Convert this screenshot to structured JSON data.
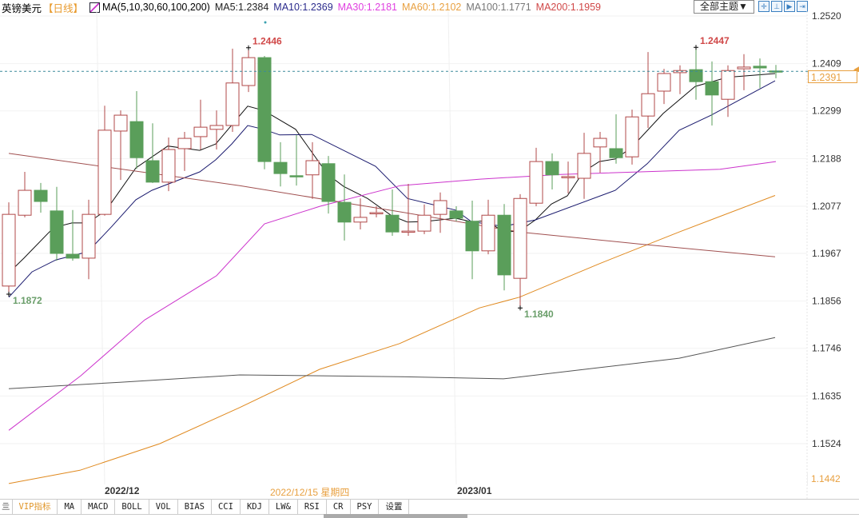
{
  "header": {
    "symbol": "英镑美元",
    "period": "【日线】",
    "ma_title": "MA(5,10,30,60,100,200)",
    "ma_values": [
      {
        "label": "MA5:1.2384",
        "color": "#222222"
      },
      {
        "label": "MA10:1.2369",
        "color": "#2b2b8c"
      },
      {
        "label": "MA30:1.2181",
        "color": "#e040e0"
      },
      {
        "label": "MA60:1.2102",
        "color": "#e8a040"
      },
      {
        "label": "MA100:1.1771",
        "color": "#777777"
      },
      {
        "label": "MA200:1.1959",
        "color": "#d04848"
      }
    ],
    "theme_button": "全部主题▼",
    "tool_icons": [
      "crosshair-icon",
      "range-icon",
      "play-icon",
      "exit-icon"
    ]
  },
  "chart_data": {
    "type": "candlestick",
    "title": "英镑美元 日线",
    "ylim": [
      1.1442,
      1.252
    ],
    "yticks": [
      "1.2520",
      "1.2409",
      "1.2299",
      "1.2188",
      "1.2077",
      "1.1967",
      "1.1856",
      "1.1746",
      "1.1635",
      "1.1524"
    ],
    "y_bottom_label": "1.1442",
    "current_price": "1.2391",
    "x_labels": [
      {
        "label": "2022/12",
        "index": 6
      },
      {
        "label": "2023/01",
        "index": 28
      }
    ],
    "crosshair_date": "2022/12/15 星期四",
    "annotations": [
      {
        "label": "1.1872",
        "index": 0,
        "kind": "low"
      },
      {
        "label": "1.2446",
        "index": 15,
        "kind": "high"
      },
      {
        "label": "1.1840",
        "index": 32,
        "kind": "low"
      },
      {
        "label": "1.2447",
        "index": 43,
        "kind": "high"
      }
    ],
    "ohlc": [
      [
        1.1891,
        1.2086,
        1.1872,
        1.2058
      ],
      [
        1.2056,
        1.2157,
        1.2051,
        1.2114
      ],
      [
        1.2114,
        1.2131,
        1.2062,
        1.2088
      ],
      [
        1.2066,
        1.2122,
        1.195,
        1.1967
      ],
      [
        1.1965,
        1.2068,
        1.195,
        1.1956
      ],
      [
        1.1956,
        1.2092,
        1.1907,
        1.2058
      ],
      [
        1.2058,
        1.2311,
        1.2055,
        1.2254
      ],
      [
        1.2252,
        1.23,
        1.2138,
        1.2289
      ],
      [
        1.2274,
        1.2345,
        1.2164,
        1.219
      ],
      [
        1.2183,
        1.227,
        1.2131,
        1.2133
      ],
      [
        1.2133,
        1.2237,
        1.2112,
        1.2209
      ],
      [
        1.2211,
        1.225,
        1.2159,
        1.2235
      ],
      [
        1.2239,
        1.2325,
        1.2209,
        1.2261
      ],
      [
        1.2256,
        1.23,
        1.2209,
        1.2265
      ],
      [
        1.2265,
        1.2444,
        1.225,
        1.2364
      ],
      [
        1.2358,
        1.2446,
        1.2343,
        1.2423
      ],
      [
        1.2423,
        1.2427,
        1.2163,
        1.2181
      ],
      [
        1.2179,
        1.2226,
        1.2123,
        1.2153
      ],
      [
        1.2148,
        1.2243,
        1.2125,
        1.2146
      ],
      [
        1.215,
        1.2226,
        1.2094,
        1.2183
      ],
      [
        1.2176,
        1.2194,
        1.206,
        1.2088
      ],
      [
        1.2086,
        1.2151,
        1.1997,
        1.204
      ],
      [
        1.204,
        1.2095,
        1.2023,
        1.2051
      ],
      [
        1.206,
        1.2077,
        1.2051,
        1.2062
      ],
      [
        1.2056,
        1.2116,
        1.2008,
        1.2017
      ],
      [
        1.2018,
        1.2129,
        1.2008,
        1.2019
      ],
      [
        1.2019,
        1.2081,
        1.2012,
        1.2056
      ],
      [
        1.2058,
        1.2109,
        1.2015,
        1.209
      ],
      [
        1.2066,
        1.2077,
        1.2042,
        1.2049
      ],
      [
        1.2042,
        1.209,
        1.1907,
        1.1973
      ],
      [
        1.1973,
        1.2092,
        1.1965,
        1.2056
      ],
      [
        1.2056,
        1.2082,
        1.1881,
        1.1917
      ],
      [
        1.1909,
        1.2105,
        1.184,
        1.2095
      ],
      [
        1.2084,
        1.2213,
        1.2077,
        1.2181
      ],
      [
        1.2181,
        1.22,
        1.2116,
        1.215
      ],
      [
        1.2144,
        1.2181,
        1.2107,
        1.2146
      ],
      [
        1.2142,
        1.2248,
        1.2094,
        1.22
      ],
      [
        1.2215,
        1.225,
        1.2155,
        1.2235
      ],
      [
        1.2211,
        1.2291,
        1.2176,
        1.219
      ],
      [
        1.2192,
        1.2302,
        1.2174,
        1.2285
      ],
      [
        1.2287,
        1.2436,
        1.2259,
        1.2339
      ],
      [
        1.2345,
        1.2397,
        1.2315,
        1.2386
      ],
      [
        1.2388,
        1.2405,
        1.2338,
        1.2393
      ],
      [
        1.2395,
        1.2447,
        1.2325,
        1.2367
      ],
      [
        1.2367,
        1.2414,
        1.2265,
        1.2336
      ],
      [
        1.2326,
        1.2405,
        1.2285,
        1.2393
      ],
      [
        1.2397,
        1.2431,
        1.2347,
        1.2401
      ],
      [
        1.2403,
        1.2421,
        1.2352,
        1.2399
      ],
      [
        1.2392,
        1.2406,
        1.2375,
        1.2391
      ]
    ],
    "colors": {
      "up": "#b04848",
      "down": "#5a9e5a",
      "current_line": "#3a8a9a"
    },
    "series": [
      {
        "name": "MA5",
        "color": "#111111",
        "points": [
          [
            -0.4,
            1.1907
          ],
          [
            0.95,
            1.1956
          ],
          [
            2.8,
            1.2027
          ],
          [
            3.95,
            1.2038
          ],
          [
            4.95,
            1.2038
          ],
          [
            6.1,
            1.2068
          ],
          [
            7.95,
            1.2166
          ],
          [
            9.95,
            1.2217
          ],
          [
            11.95,
            1.2207
          ],
          [
            12.95,
            1.2222
          ],
          [
            14.95,
            1.231
          ],
          [
            15.95,
            1.23
          ],
          [
            17.95,
            1.2256
          ],
          [
            19.95,
            1.2151
          ],
          [
            20.95,
            1.2123
          ],
          [
            22.45,
            1.2095
          ],
          [
            23.95,
            1.2055
          ],
          [
            24.95,
            1.204
          ],
          [
            25.95,
            1.2041
          ],
          [
            27.95,
            1.2049
          ],
          [
            28.95,
            1.2041
          ],
          [
            29.95,
            1.2043
          ],
          [
            30.95,
            1.2017
          ],
          [
            31.95,
            1.2019
          ],
          [
            32.95,
            1.2045
          ],
          [
            33.95,
            1.2082
          ],
          [
            34.95,
            1.2101
          ],
          [
            35.95,
            1.2157
          ],
          [
            36.95,
            1.2181
          ],
          [
            37.95,
            1.2187
          ],
          [
            38.95,
            1.2213
          ],
          [
            40.95,
            1.2293
          ],
          [
            42.95,
            1.2356
          ],
          [
            44.95,
            1.2377
          ],
          [
            47.95,
            1.2386
          ]
        ]
      },
      {
        "name": "MA10",
        "color": "#1a1a6e",
        "points": [
          [
            0,
            1.1865
          ],
          [
            1.45,
            1.1924
          ],
          [
            2.95,
            1.1952
          ],
          [
            4.95,
            1.1971
          ],
          [
            6.45,
            1.203
          ],
          [
            7.95,
            1.2092
          ],
          [
            8.95,
            1.2114
          ],
          [
            11.95,
            1.2157
          ],
          [
            12.95,
            1.2185
          ],
          [
            13.95,
            1.2222
          ],
          [
            14.95,
            1.2265
          ],
          [
            15.95,
            1.2256
          ],
          [
            16.95,
            1.2243
          ],
          [
            18.95,
            1.2244
          ],
          [
            22.95,
            1.217
          ],
          [
            24.95,
            1.2095
          ],
          [
            27.95,
            1.2068
          ],
          [
            28.95,
            1.2041
          ],
          [
            30.95,
            1.203
          ],
          [
            32.95,
            1.2045
          ],
          [
            37.95,
            1.2114
          ],
          [
            39.95,
            1.2176
          ],
          [
            41.95,
            1.2254
          ],
          [
            43.95,
            1.2289
          ],
          [
            46.95,
            1.2349
          ],
          [
            47.95,
            1.2369
          ]
        ]
      },
      {
        "name": "MA30",
        "color": "#cc33cc",
        "points": [
          [
            0,
            1.1555
          ],
          [
            4.5,
            1.1682
          ],
          [
            8.5,
            1.1812
          ],
          [
            13,
            1.1915
          ],
          [
            16,
            1.2036
          ],
          [
            19.5,
            1.2077
          ],
          [
            24.5,
            1.2125
          ],
          [
            29.5,
            1.214
          ],
          [
            34.5,
            1.2151
          ],
          [
            39.5,
            1.2157
          ],
          [
            44.5,
            1.2163
          ],
          [
            48,
            1.2181
          ]
        ]
      },
      {
        "name": "MA60",
        "color": "#e08a20",
        "points": [
          [
            0,
            1.1431
          ],
          [
            4.45,
            1.1462
          ],
          [
            9.45,
            1.1524
          ],
          [
            14.45,
            1.1608
          ],
          [
            19.45,
            1.1697
          ],
          [
            24.45,
            1.1757
          ],
          [
            29.45,
            1.184
          ],
          [
            31.95,
            1.1865
          ],
          [
            36.95,
            1.1943
          ],
          [
            41.95,
            1.2017
          ],
          [
            47.95,
            1.2102
          ]
        ]
      },
      {
        "name": "MA100",
        "color": "#555555",
        "points": [
          [
            0,
            1.1652
          ],
          [
            6.95,
            1.1667
          ],
          [
            14.45,
            1.1684
          ],
          [
            24.45,
            1.168
          ],
          [
            30.95,
            1.1675
          ],
          [
            36.95,
            1.1701
          ],
          [
            41.95,
            1.1723
          ],
          [
            47.95,
            1.1771
          ]
        ]
      },
      {
        "name": "MA200",
        "color": "#a05050",
        "points": [
          [
            0,
            1.22
          ],
          [
            14.45,
            1.2125
          ],
          [
            24.45,
            1.2064
          ],
          [
            31.95,
            1.2017
          ],
          [
            39.45,
            1.1989
          ],
          [
            47.95,
            1.1959
          ]
        ]
      }
    ]
  },
  "tabs": [
    "亖",
    "VIP指标",
    "MA",
    "MACD",
    "BOLL",
    "VOL",
    "BIAS",
    "CCI",
    "KDJ",
    "LW&",
    "RSI",
    "CR",
    "PSY",
    "设置"
  ]
}
